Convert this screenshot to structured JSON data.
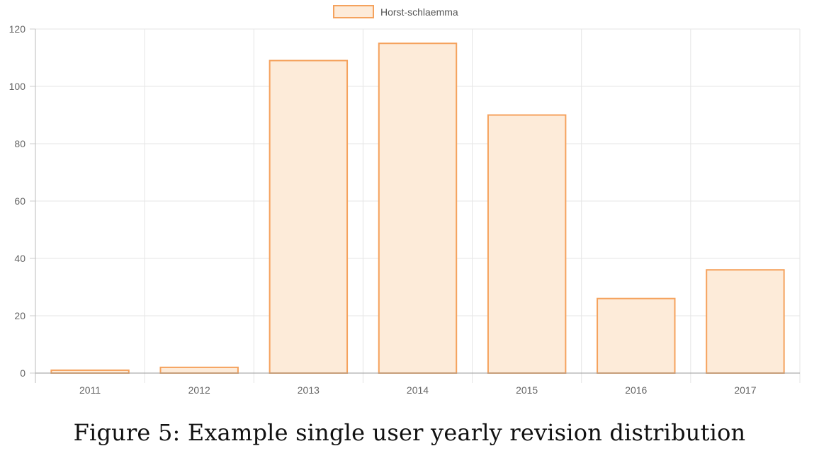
{
  "chart_data": {
    "type": "bar",
    "categories": [
      "2011",
      "2012",
      "2013",
      "2014",
      "2015",
      "2016",
      "2017"
    ],
    "series": [
      {
        "name": "Horst-schlaemma",
        "values": [
          1,
          2,
          109,
          115,
          90,
          26,
          36
        ]
      }
    ],
    "ylim": [
      0,
      120
    ],
    "yticks": [
      0,
      20,
      40,
      60,
      80,
      100,
      120
    ],
    "grid": true,
    "legend_position": "top-center",
    "bar_fill": "#fdebd9",
    "bar_stroke": "#f5a25d"
  },
  "caption": "Figure 5: Example single user yearly revision distribution"
}
